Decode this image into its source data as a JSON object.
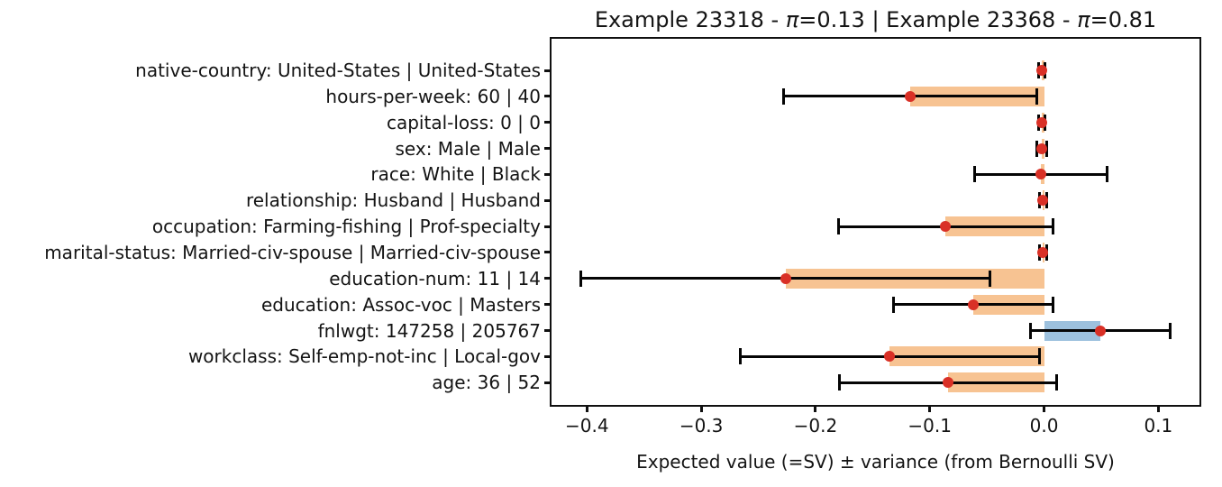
{
  "figure": {
    "title": "Example 23318 - π=0.13 | Example 23368 - π=0.81",
    "xlabel": "Expected value (=SV) ± variance (from Bernoulli SV)"
  },
  "chart_data": {
    "type": "bar",
    "orientation": "horizontal",
    "title": "Example 23318 - π=0.13 | Example 23368 - π=0.81",
    "xlabel": "Expected value (=SV) ± variance (from Bernoulli SV)",
    "ylabel": "",
    "legend": null,
    "grid": false,
    "xlim": [
      -0.431,
      0.136
    ],
    "xticks": [
      -0.4,
      -0.3,
      -0.2,
      -0.1,
      0.0,
      0.1
    ],
    "xtick_labels": [
      "−0.4",
      "−0.3",
      "−0.2",
      "−0.1",
      "0.0",
      "0.1"
    ],
    "categories": [
      "native-country: United-States | United-States",
      "hours-per-week: 60 | 40",
      "capital-loss: 0 | 0",
      "sex: Male | Male",
      "race: White | Black",
      "relationship: Husband | Husband",
      "occupation: Farming-fishing | Prof-specialty",
      "marital-status: Married-civ-spouse | Married-civ-spouse",
      "education-num: 11 | 14",
      "education: Assoc-voc | Masters",
      "fnlwgt: 147258 | 205767",
      "workclass: Self-emp-not-inc | Local-gov",
      "age: 36 | 52"
    ],
    "series": [
      {
        "name": "Expected value (=SV)",
        "values": [
          -0.002,
          -0.117,
          -0.002,
          -0.002,
          -0.003,
          -0.001,
          -0.086,
          -0.001,
          -0.226,
          -0.062,
          0.049,
          -0.135,
          -0.084
        ]
      },
      {
        "name": "variance (from Bernoulli SV)",
        "values": [
          0.003,
          0.111,
          0.003,
          0.004,
          0.058,
          0.003,
          0.094,
          0.003,
          0.179,
          0.07,
          0.061,
          0.131,
          0.095
        ]
      }
    ],
    "colors": {
      "negative_bar": "#F7C392",
      "positive_bar": "#9DC1DE",
      "point": "#D93026",
      "errorbar": "#050505",
      "frame": "#101010"
    }
  }
}
